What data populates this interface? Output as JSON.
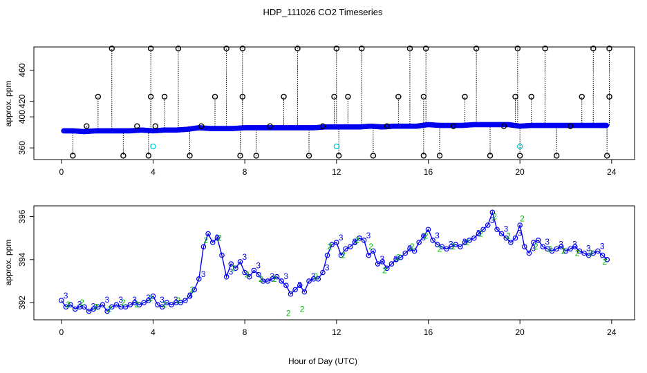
{
  "figure": {
    "title": "HDP_111026  CO2 Timeseries",
    "xlabel": "Hour of Day (UTC)"
  },
  "chart_data": [
    {
      "type": "scatter",
      "ylabel": "approx. ppm",
      "xlim": [
        -1.2,
        25
      ],
      "ylim": [
        345,
        490
      ],
      "x_ticks": [
        0,
        4,
        8,
        12,
        16,
        20,
        24
      ],
      "y_ticks": [
        360,
        400,
        420,
        460
      ],
      "y_tick_labels": [
        "360",
        "400",
        "420",
        "460"
      ],
      "colors": {
        "main": "#0000ee",
        "outlier": "#000000",
        "cyan": "#00cccc"
      },
      "series": [
        {
          "role": "baseline",
          "x": [
            0.1,
            0.5,
            1,
            1.5,
            2,
            2.5,
            3,
            3.5,
            4,
            4.5,
            5,
            5.5,
            6,
            6.5,
            7,
            7.5,
            8,
            8.5,
            9,
            9.5,
            10,
            10.5,
            11,
            11.5,
            12,
            12.5,
            13,
            13.5,
            14,
            14.5,
            15,
            15.5,
            16,
            16.5,
            17,
            17.5,
            18,
            18.5,
            19,
            19.5,
            20,
            20.5,
            21,
            21.5,
            22,
            22.5,
            23,
            23.5,
            23.8
          ],
          "y": [
            382,
            382,
            381,
            382,
            382,
            382,
            382,
            383,
            382,
            383,
            383,
            384,
            386,
            385,
            385,
            385,
            386,
            386,
            386,
            386,
            386,
            386,
            386,
            387,
            387,
            387,
            387,
            388,
            387,
            388,
            388,
            388,
            390,
            389,
            389,
            389,
            390,
            390,
            390,
            390,
            388,
            389,
            389,
            389,
            389,
            389,
            389,
            389,
            389
          ]
        },
        {
          "role": "spikes",
          "x": [
            0.5,
            1.1,
            1.6,
            2.2,
            2.7,
            3.3,
            3.8,
            3.9,
            3.9,
            4.1,
            4.5,
            5.1,
            5.6,
            6.1,
            6.7,
            7.2,
            7.8,
            7.9,
            7.9,
            8.5,
            9.1,
            9.7,
            10.3,
            10.8,
            11.4,
            11.9,
            12,
            12.1,
            12.5,
            13.1,
            13.6,
            14.2,
            14.7,
            15.2,
            15.8,
            15.8,
            15.9,
            16.5,
            17.1,
            17.6,
            18.1,
            18.7,
            19.3,
            19.8,
            19.9,
            20,
            20.5,
            21.1,
            21.6,
            22.2,
            22.7,
            23.2,
            23.8,
            23.9,
            23.9
          ],
          "y": [
            350,
            388,
            426,
            488,
            350,
            388,
            350,
            426,
            488,
            388,
            426,
            488,
            350,
            388,
            426,
            488,
            350,
            426,
            488,
            350,
            388,
            426,
            488,
            350,
            388,
            426,
            488,
            350,
            426,
            488,
            350,
            388,
            426,
            488,
            350,
            426,
            488,
            350,
            388,
            426,
            488,
            350,
            388,
            426,
            488,
            350,
            426,
            488,
            350,
            388,
            426,
            488,
            350,
            426,
            488
          ]
        },
        {
          "role": "cyan",
          "x": [
            4,
            12,
            20
          ],
          "y": [
            362,
            362,
            362
          ]
        }
      ]
    },
    {
      "type": "line",
      "ylabel": "approx. ppm",
      "xlim": [
        -1.2,
        25
      ],
      "ylim": [
        391.2,
        396.5
      ],
      "x_ticks": [
        0,
        4,
        8,
        12,
        16,
        20,
        24
      ],
      "y_ticks": [
        392,
        394,
        396
      ],
      "colors": {
        "line": "#0000ee",
        "c3": "#0000ee",
        "c2": "#00bb00"
      },
      "series": [
        {
          "name": "3",
          "x": [
            0,
            0.2,
            0.4,
            0.6,
            0.8,
            1,
            1.2,
            1.4,
            1.6,
            1.8,
            2,
            2.2,
            2.4,
            2.6,
            2.8,
            3,
            3.2,
            3.4,
            3.6,
            3.8,
            4,
            4.2,
            4.4,
            4.6,
            4.8,
            5,
            5.2,
            5.4,
            5.6,
            5.8,
            6,
            6.2,
            6.4,
            6.6,
            6.8,
            7,
            7.2,
            7.4,
            7.6,
            7.8,
            8,
            8.2,
            8.4,
            8.6,
            8.8,
            9,
            9.2,
            9.4,
            9.6,
            9.8,
            10,
            10.2,
            10.4,
            10.6,
            10.8,
            11,
            11.2,
            11.4,
            11.6,
            11.8,
            12,
            12.2,
            12.4,
            12.6,
            12.8,
            13,
            13.2,
            13.4,
            13.6,
            13.8,
            14,
            14.2,
            14.4,
            14.6,
            14.8,
            15,
            15.2,
            15.4,
            15.6,
            15.8,
            16,
            16.2,
            16.4,
            16.6,
            16.8,
            17,
            17.2,
            17.4,
            17.6,
            17.8,
            18,
            18.2,
            18.4,
            18.6,
            18.8,
            19,
            19.2,
            19.4,
            19.6,
            19.8,
            20,
            20.2,
            20.4,
            20.6,
            20.8,
            21,
            21.2,
            21.4,
            21.6,
            21.8,
            22,
            22.2,
            22.4,
            22.6,
            22.8,
            23,
            23.2,
            23.4,
            23.6,
            23.8
          ],
          "y": [
            392.1,
            391.8,
            391.9,
            391.7,
            391.8,
            391.8,
            391.6,
            391.7,
            391.8,
            391.9,
            391.6,
            391.8,
            391.9,
            391.8,
            391.8,
            391.9,
            392,
            391.9,
            392,
            392.1,
            392.3,
            391.9,
            391.8,
            392,
            391.9,
            392,
            392,
            392.1,
            392.3,
            392.6,
            393.1,
            394.6,
            395.2,
            394.8,
            395,
            394.2,
            393.2,
            393.8,
            393.6,
            393.9,
            393.4,
            393.2,
            393.5,
            393.3,
            393,
            393,
            393.1,
            393.2,
            393,
            392.8,
            392.4,
            392.6,
            392.8,
            392.5,
            393,
            393.1,
            393.1,
            393.4,
            394.2,
            394.7,
            394.8,
            394.2,
            394.5,
            394.6,
            394.8,
            395,
            394.9,
            394.2,
            394.4,
            393.8,
            393.9,
            393.6,
            393.8,
            394,
            394.1,
            394.3,
            394.5,
            394.4,
            394.8,
            395.1,
            395.4,
            394.9,
            394.7,
            394.6,
            394.5,
            394.6,
            394.7,
            394.6,
            394.8,
            394.9,
            395,
            395.2,
            395.4,
            395.6,
            396.2,
            395.4,
            395.2,
            395,
            394.8,
            395,
            395.6,
            394.6,
            394.3,
            394.8,
            394.9,
            394.6,
            394.5,
            394.4,
            394.5,
            394.6,
            394.4,
            394.5,
            394.6,
            394.4,
            394.3,
            394.2,
            394.3,
            394.4,
            394.2,
            394
          ]
        },
        {
          "name": "2",
          "x": [
            0.3,
            0.9,
            1.5,
            2.1,
            2.7,
            3.3,
            3.9,
            4.5,
            5.1,
            5.7,
            6.3,
            6.9,
            7.5,
            8.1,
            8.7,
            9.3,
            9.9,
            10.5,
            11.1,
            11.7,
            12.3,
            12.9,
            13.5,
            14.1,
            14.7,
            15.3,
            15.9,
            16.5,
            17.1,
            17.7,
            18.3,
            18.9,
            19.5,
            20.1,
            20.7,
            21.3,
            21.9,
            22.5,
            23.1,
            23.7
          ],
          "y": [
            391.9,
            392,
            391.8,
            391.7,
            392,
            391.9,
            392.2,
            391.9,
            392.1,
            392.6,
            394.9,
            395,
            393.6,
            393.3,
            393.1,
            393.1,
            391.5,
            391.7,
            393.2,
            394.6,
            394.2,
            394.9,
            394.6,
            393.5,
            394.1,
            394.6,
            395.1,
            394.5,
            394.6,
            394.8,
            395.2,
            396,
            395.1,
            395.9,
            394.6,
            394.5,
            394.4,
            394.3,
            394.3,
            393.9
          ]
        }
      ]
    }
  ]
}
